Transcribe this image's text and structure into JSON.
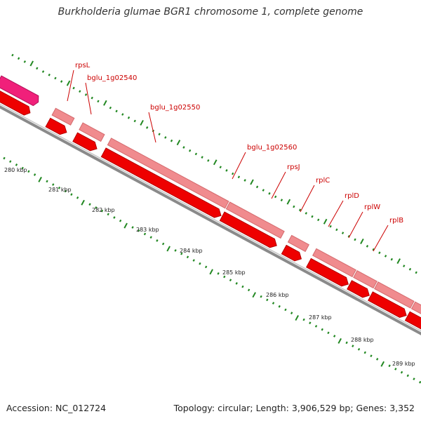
{
  "title": "Burkholderia glumae BGR1 chromosome 1, complete genome",
  "footer": {
    "accession": "Accession: NC_012724",
    "topology": "Topology: circular; Length: 3,906,529 bp; Genes: 3,352"
  },
  "colors": {
    "gene_bar": "#f08b8e",
    "gene_bar_edge": "#d46a6d",
    "cds_arrow": "#ee0000",
    "cds_arrow_edge": "#b30000",
    "pink_feature": "#f0207a",
    "backbone": "#8a8a8a",
    "tick": "#228822",
    "label": "#cc0000",
    "kbp_label": "#222222"
  },
  "scale": {
    "unit": "kbp",
    "labels": [
      "280 kbp",
      "281 kbp",
      "282 kbp",
      "283 kbp",
      "284 kbp",
      "285 kbp",
      "286 kbp",
      "287 kbp",
      "288 kbp",
      "289 kbp"
    ]
  },
  "genes": [
    {
      "name": "rpsL"
    },
    {
      "name": "bglu_1g02540"
    },
    {
      "name": "bglu_1g02550"
    },
    {
      "name": "bglu_1g02560"
    },
    {
      "name": "rpsJ"
    },
    {
      "name": "rplC"
    },
    {
      "name": "rplD"
    },
    {
      "name": "rplW"
    },
    {
      "name": "rplB"
    }
  ]
}
